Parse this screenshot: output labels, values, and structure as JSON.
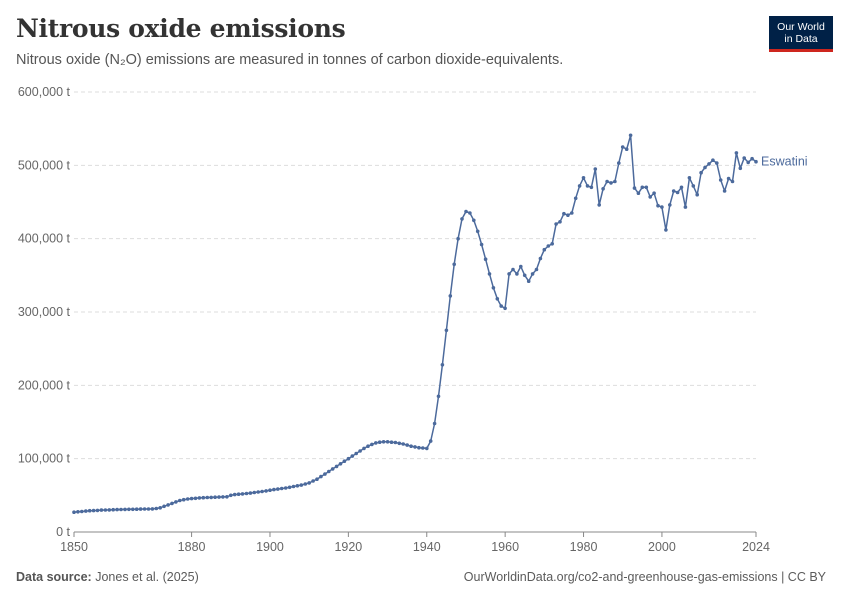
{
  "header": {
    "title": "Nitrous oxide emissions",
    "subtitle": "Nitrous oxide (N₂O) emissions are measured in tonnes of carbon dioxide-equivalents."
  },
  "logo": {
    "line1": "Our World",
    "line2": "in Data"
  },
  "footer": {
    "source_label": "Data source:",
    "source_text": "Jones et al. (2025)",
    "link_text": "OurWorldinData.org/co2-and-greenhouse-gas-emissions | CC BY"
  },
  "colors": {
    "series": "#4c6a9c",
    "grid": "#dddddd",
    "axis": "#888888",
    "brand": "#002147",
    "brand_accent": "#ce261e"
  },
  "chart_data": {
    "type": "line",
    "title": "Nitrous oxide emissions",
    "xlabel": "",
    "ylabel": "",
    "xlim": [
      1850,
      2024
    ],
    "ylim": [
      0,
      600000
    ],
    "x_ticks": [
      1850,
      1880,
      1900,
      1920,
      1940,
      1960,
      1980,
      2000,
      2024
    ],
    "y_ticks": [
      0,
      100000,
      200000,
      300000,
      400000,
      500000,
      600000
    ],
    "y_tick_labels": [
      "0 t",
      "100,000 t",
      "200,000 t",
      "300,000 t",
      "400,000 t",
      "500,000 t",
      "600,000 t"
    ],
    "grid": true,
    "legend": "inline label at line end",
    "series": [
      {
        "name": "Eswatini",
        "points": [
          [
            1850,
            27000
          ],
          [
            1851,
            27500
          ],
          [
            1852,
            28000
          ],
          [
            1853,
            28500
          ],
          [
            1854,
            29000
          ],
          [
            1855,
            29200
          ],
          [
            1856,
            29500
          ],
          [
            1857,
            29800
          ],
          [
            1858,
            30000
          ],
          [
            1859,
            30200
          ],
          [
            1860,
            30400
          ],
          [
            1861,
            30600
          ],
          [
            1862,
            30700
          ],
          [
            1863,
            30800
          ],
          [
            1864,
            30900
          ],
          [
            1865,
            31000
          ],
          [
            1866,
            31100
          ],
          [
            1867,
            31200
          ],
          [
            1868,
            31300
          ],
          [
            1869,
            31400
          ],
          [
            1870,
            31500
          ],
          [
            1871,
            32000
          ],
          [
            1872,
            33000
          ],
          [
            1873,
            35000
          ],
          [
            1874,
            37000
          ],
          [
            1875,
            39000
          ],
          [
            1876,
            41000
          ],
          [
            1877,
            43000
          ],
          [
            1878,
            44000
          ],
          [
            1879,
            45000
          ],
          [
            1880,
            45500
          ],
          [
            1881,
            46000
          ],
          [
            1882,
            46500
          ],
          [
            1883,
            46800
          ],
          [
            1884,
            47000
          ],
          [
            1885,
            47200
          ],
          [
            1886,
            47400
          ],
          [
            1887,
            47600
          ],
          [
            1888,
            47800
          ],
          [
            1889,
            48000
          ],
          [
            1890,
            50000
          ],
          [
            1891,
            51000
          ],
          [
            1892,
            51500
          ],
          [
            1893,
            52000
          ],
          [
            1894,
            52500
          ],
          [
            1895,
            53000
          ],
          [
            1896,
            53800
          ],
          [
            1897,
            54500
          ],
          [
            1898,
            55200
          ],
          [
            1899,
            56000
          ],
          [
            1900,
            57000
          ],
          [
            1901,
            57800
          ],
          [
            1902,
            58500
          ],
          [
            1903,
            59300
          ],
          [
            1904,
            60000
          ],
          [
            1905,
            61000
          ],
          [
            1906,
            62000
          ],
          [
            1907,
            63000
          ],
          [
            1908,
            64000
          ],
          [
            1909,
            65500
          ],
          [
            1910,
            67000
          ],
          [
            1911,
            69500
          ],
          [
            1912,
            72000
          ],
          [
            1913,
            75500
          ],
          [
            1914,
            79000
          ],
          [
            1915,
            82500
          ],
          [
            1916,
            86000
          ],
          [
            1917,
            89500
          ],
          [
            1918,
            93000
          ],
          [
            1919,
            96500
          ],
          [
            1920,
            100000
          ],
          [
            1921,
            103500
          ],
          [
            1922,
            107000
          ],
          [
            1923,
            110500
          ],
          [
            1924,
            114000
          ],
          [
            1925,
            117000
          ],
          [
            1926,
            119500
          ],
          [
            1927,
            121500
          ],
          [
            1928,
            122500
          ],
          [
            1929,
            123000
          ],
          [
            1930,
            123000
          ],
          [
            1931,
            122500
          ],
          [
            1932,
            122000
          ],
          [
            1933,
            121000
          ],
          [
            1934,
            120000
          ],
          [
            1935,
            118500
          ],
          [
            1936,
            117000
          ],
          [
            1937,
            116000
          ],
          [
            1938,
            115000
          ],
          [
            1939,
            114500
          ],
          [
            1940,
            114000
          ],
          [
            1941,
            124000
          ],
          [
            1942,
            148000
          ],
          [
            1943,
            185000
          ],
          [
            1944,
            228000
          ],
          [
            1945,
            275000
          ],
          [
            1946,
            322000
          ],
          [
            1947,
            365000
          ],
          [
            1948,
            400000
          ],
          [
            1949,
            427000
          ],
          [
            1950,
            437000
          ],
          [
            1951,
            435000
          ],
          [
            1952,
            425000
          ],
          [
            1953,
            410000
          ],
          [
            1954,
            392000
          ],
          [
            1955,
            372000
          ],
          [
            1956,
            352000
          ],
          [
            1957,
            333000
          ],
          [
            1958,
            318000
          ],
          [
            1959,
            308000
          ],
          [
            1960,
            305000
          ],
          [
            1961,
            352000
          ],
          [
            1962,
            358000
          ],
          [
            1963,
            352000
          ],
          [
            1964,
            362000
          ],
          [
            1965,
            350000
          ],
          [
            1966,
            342000
          ],
          [
            1967,
            352000
          ],
          [
            1968,
            358000
          ],
          [
            1969,
            373000
          ],
          [
            1970,
            385000
          ],
          [
            1971,
            390000
          ],
          [
            1972,
            393000
          ],
          [
            1973,
            420000
          ],
          [
            1974,
            423000
          ],
          [
            1975,
            434000
          ],
          [
            1976,
            432000
          ],
          [
            1977,
            435000
          ],
          [
            1978,
            455000
          ],
          [
            1979,
            472000
          ],
          [
            1980,
            483000
          ],
          [
            1981,
            472000
          ],
          [
            1982,
            470000
          ],
          [
            1983,
            495000
          ],
          [
            1984,
            446000
          ],
          [
            1985,
            468000
          ],
          [
            1986,
            478000
          ],
          [
            1987,
            476000
          ],
          [
            1988,
            478000
          ],
          [
            1989,
            503000
          ],
          [
            1990,
            525000
          ],
          [
            1991,
            522000
          ],
          [
            1992,
            541000
          ],
          [
            1993,
            469000
          ],
          [
            1994,
            462000
          ],
          [
            1995,
            470000
          ],
          [
            1996,
            470000
          ],
          [
            1997,
            457000
          ],
          [
            1998,
            462000
          ],
          [
            1999,
            445000
          ],
          [
            2000,
            443000
          ],
          [
            2001,
            412000
          ],
          [
            2002,
            446000
          ],
          [
            2003,
            465000
          ],
          [
            2004,
            463000
          ],
          [
            2005,
            470000
          ],
          [
            2006,
            443000
          ],
          [
            2007,
            483000
          ],
          [
            2008,
            472000
          ],
          [
            2009,
            460000
          ],
          [
            2010,
            490000
          ],
          [
            2011,
            497000
          ],
          [
            2012,
            502000
          ],
          [
            2013,
            507000
          ],
          [
            2014,
            503000
          ],
          [
            2015,
            480000
          ],
          [
            2016,
            465000
          ],
          [
            2017,
            482000
          ],
          [
            2018,
            478000
          ],
          [
            2019,
            517000
          ],
          [
            2020,
            496000
          ],
          [
            2021,
            510000
          ],
          [
            2022,
            504000
          ],
          [
            2023,
            509000
          ],
          [
            2024,
            505000
          ]
        ]
      }
    ]
  }
}
